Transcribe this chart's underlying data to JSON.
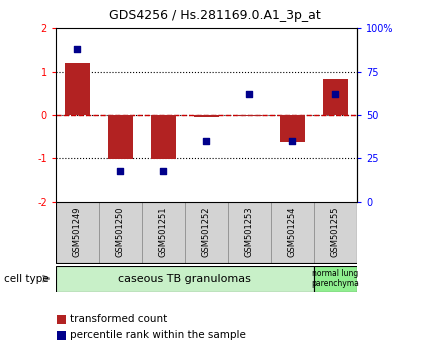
{
  "title": "GDS4256 / Hs.281169.0.A1_3p_at",
  "samples": [
    "GSM501249",
    "GSM501250",
    "GSM501251",
    "GSM501252",
    "GSM501253",
    "GSM501254",
    "GSM501255"
  ],
  "transformed_count": [
    1.2,
    -1.02,
    -1.02,
    -0.05,
    -0.03,
    -0.62,
    0.82
  ],
  "percentile_rank": [
    88,
    18,
    18,
    35,
    62,
    35,
    62
  ],
  "ylim_left": [
    -2,
    2
  ],
  "ylim_right": [
    0,
    100
  ],
  "yticks_left": [
    -2,
    -1,
    0,
    1,
    2
  ],
  "yticks_right": [
    0,
    25,
    50,
    75,
    100
  ],
  "yticklabels_right": [
    "0",
    "25",
    "50",
    "75",
    "100%"
  ],
  "bar_color": "#b22222",
  "dot_color": "#00008b",
  "dashed_line_color": "#cc0000",
  "group1_samples": 6,
  "group2_samples": 1,
  "group1_label": "caseous TB granulomas",
  "group2_label": "normal lung\nparenchyma",
  "group1_color": "#c8f0c8",
  "group2_color": "#90ee90",
  "label_box_color": "#d3d3d3",
  "cell_type_label": "cell type",
  "legend_bar_label": "transformed count",
  "legend_dot_label": "percentile rank within the sample",
  "plot_bg_color": "#ffffff"
}
